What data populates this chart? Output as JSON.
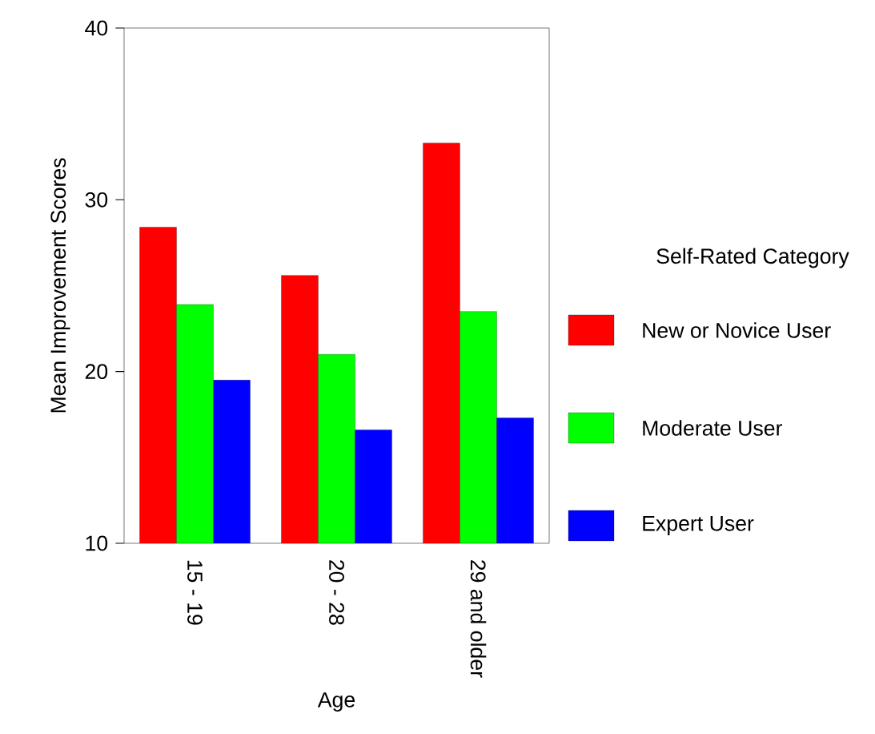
{
  "chart_data": {
    "type": "bar",
    "xlabel": "Age",
    "ylabel": "Mean Improvement Scores",
    "legend_title": "Self-Rated Category",
    "categories": [
      "15 - 19",
      "20 - 28",
      "29 and older"
    ],
    "series": [
      {
        "name": "New or Novice User",
        "color": "#ff0000",
        "values": [
          28.4,
          25.6,
          33.3
        ]
      },
      {
        "name": "Moderate User",
        "color": "#00ff00",
        "values": [
          23.9,
          21.0,
          23.5
        ]
      },
      {
        "name": "Expert User",
        "color": "#0000ff",
        "values": [
          19.5,
          16.6,
          17.3
        ]
      }
    ],
    "ylim": [
      10,
      40
    ],
    "yticks": [
      10,
      20,
      30,
      40
    ],
    "grid": false,
    "legend": "right"
  }
}
